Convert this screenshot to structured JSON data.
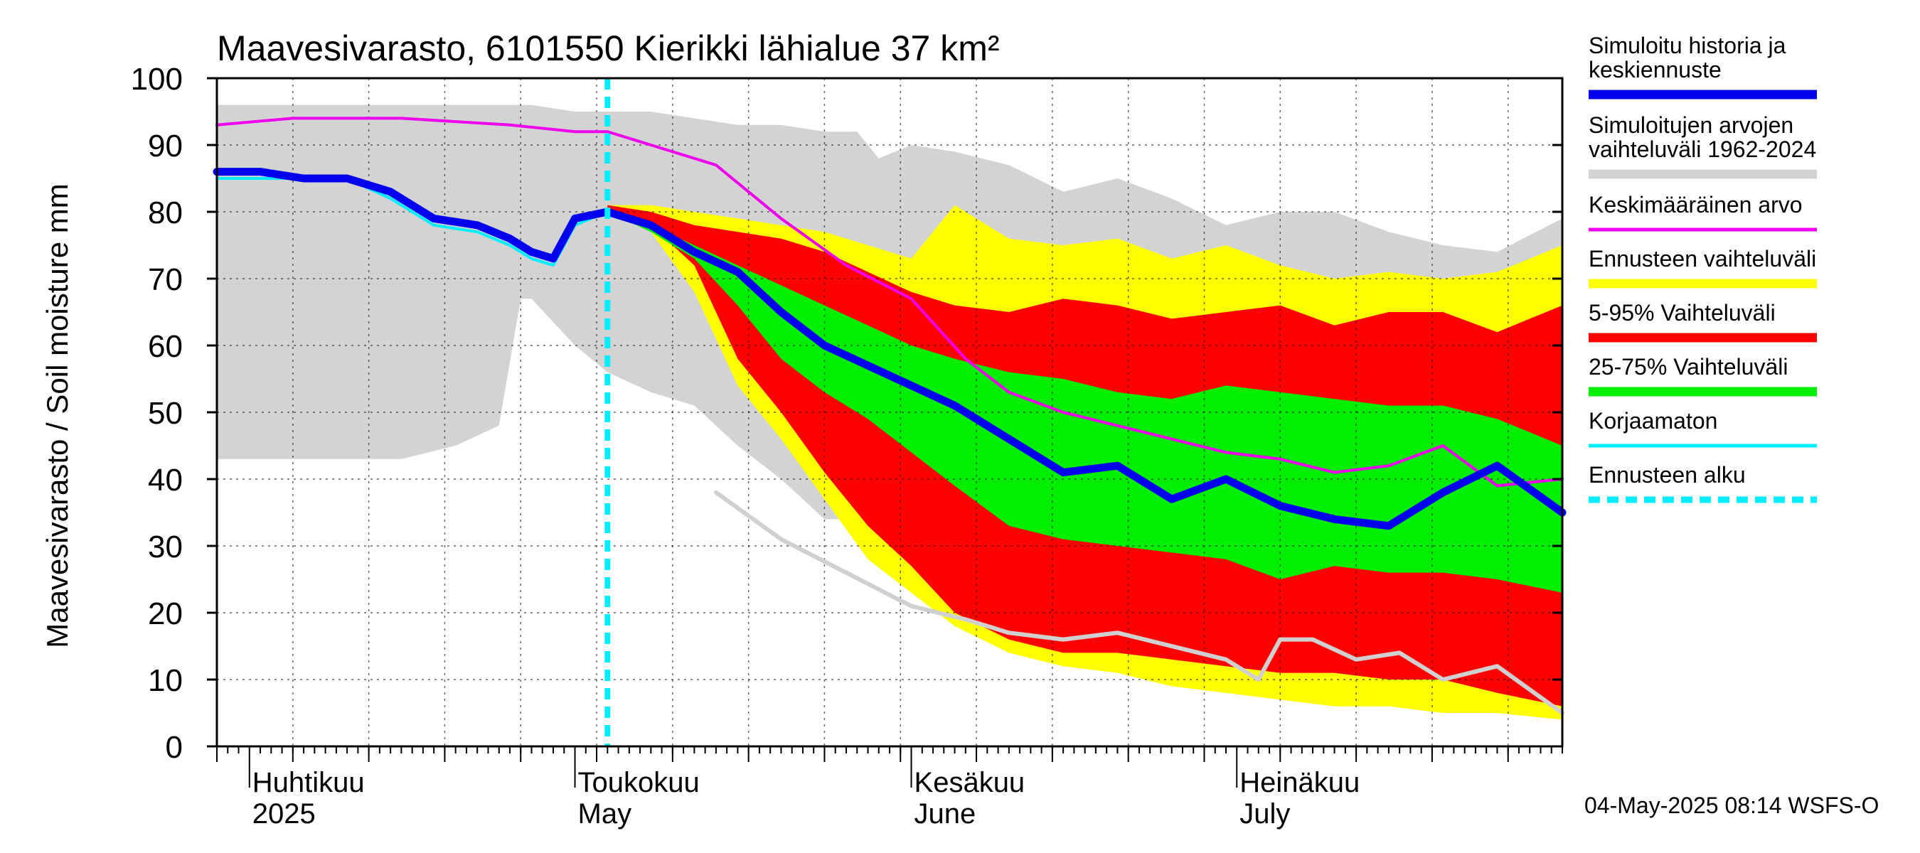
{
  "chart_data": {
    "type": "area",
    "title": "Maavesivarasto, 6101550 Kierikki lähialue 37 km²",
    "ylabel": "Maavesivarasto / Soil moisture   mm",
    "xlabel": "",
    "ylim": [
      0,
      100
    ],
    "xlim": [
      "2025-03-29",
      "2025-07-31"
    ],
    "yticks": [
      0,
      10,
      20,
      30,
      40,
      50,
      60,
      70,
      80,
      90,
      100
    ],
    "grid": true,
    "legend_position": "right",
    "forecast_start": "2025-05-04",
    "x_month_labels": [
      {
        "date": "2025-04-01",
        "line1": "Huhtikuu",
        "line2": "2025"
      },
      {
        "date": "2025-05-01",
        "line1": "Toukokuu",
        "line2": "May"
      },
      {
        "date": "2025-06-01",
        "line1": "Kesäkuu",
        "line2": "June"
      },
      {
        "date": "2025-07-01",
        "line1": "Heinäkuu",
        "line2": "July"
      }
    ],
    "colors": {
      "history_range": "#d3d3d3",
      "forecast_range": "#ffff00",
      "p5_95": "#ff0000",
      "p25_75": "#00ee00",
      "simulated": "#0000ee",
      "mean": "#ee00ee",
      "uncorrected": "#00eeff",
      "forecast_start": "#00eeff",
      "lower_line": "#d0d0d0"
    },
    "bands": {
      "history_range": {
        "x": [
          "2025-03-29",
          "2025-04-10",
          "2025-04-15",
          "2025-04-20",
          "2025-04-24",
          "2025-04-26",
          "2025-04-27",
          "2025-05-01",
          "2025-05-04",
          "2025-05-08",
          "2025-05-12",
          "2025-05-16",
          "2025-05-20",
          "2025-05-24",
          "2025-05-27",
          "2025-05-29",
          "2025-06-01",
          "2025-06-05",
          "2025-06-10",
          "2025-06-15",
          "2025-06-20",
          "2025-06-25",
          "2025-06-30",
          "2025-07-05",
          "2025-07-10",
          "2025-07-15",
          "2025-07-20",
          "2025-07-25",
          "2025-07-31"
        ],
        "upper": [
          96,
          96,
          96,
          96,
          96,
          96,
          96,
          95,
          95,
          95,
          94,
          93,
          93,
          92,
          92,
          88,
          90,
          89,
          87,
          83,
          85,
          82,
          78,
          80,
          80,
          77,
          75,
          74,
          79
        ],
        "lower": [
          43,
          43,
          43,
          45,
          48,
          67,
          67,
          60,
          56,
          53,
          51,
          45,
          40,
          34,
          34,
          34,
          34,
          30,
          25,
          22,
          18,
          15,
          13,
          12,
          10,
          10,
          9,
          8,
          6
        ]
      },
      "forecast_range": {
        "x": [
          "2025-05-04",
          "2025-05-08",
          "2025-05-12",
          "2025-05-16",
          "2025-05-20",
          "2025-05-24",
          "2025-05-28",
          "2025-06-01",
          "2025-06-05",
          "2025-06-10",
          "2025-06-15",
          "2025-06-20",
          "2025-06-25",
          "2025-06-30",
          "2025-07-05",
          "2025-07-10",
          "2025-07-15",
          "2025-07-20",
          "2025-07-25",
          "2025-07-31"
        ],
        "upper": [
          81,
          81,
          80,
          79,
          78,
          77,
          75,
          73,
          81,
          76,
          75,
          76,
          73,
          75,
          72,
          70,
          71,
          70,
          71,
          75
        ],
        "lower": [
          80,
          77,
          68,
          54,
          46,
          37,
          28,
          23,
          18,
          14,
          12,
          11,
          9,
          8,
          7,
          6,
          6,
          5,
          5,
          4
        ]
      },
      "p5_95": {
        "x": [
          "2025-05-04",
          "2025-05-08",
          "2025-05-12",
          "2025-05-16",
          "2025-05-20",
          "2025-05-24",
          "2025-05-28",
          "2025-06-01",
          "2025-06-05",
          "2025-06-10",
          "2025-06-15",
          "2025-06-20",
          "2025-06-25",
          "2025-06-30",
          "2025-07-05",
          "2025-07-10",
          "2025-07-15",
          "2025-07-20",
          "2025-07-25",
          "2025-07-31"
        ],
        "upper": [
          81,
          80,
          78,
          77,
          76,
          74,
          71,
          68,
          66,
          65,
          67,
          66,
          64,
          65,
          66,
          63,
          65,
          65,
          62,
          66
        ],
        "lower": [
          80,
          78,
          72,
          58,
          50,
          41,
          33,
          27,
          20,
          16,
          14,
          14,
          13,
          12,
          11,
          11,
          10,
          10,
          8,
          6
        ]
      },
      "p25_75": {
        "x": [
          "2025-05-04",
          "2025-05-08",
          "2025-05-12",
          "2025-05-16",
          "2025-05-20",
          "2025-05-24",
          "2025-05-28",
          "2025-06-01",
          "2025-06-05",
          "2025-06-10",
          "2025-06-15",
          "2025-06-20",
          "2025-06-25",
          "2025-06-30",
          "2025-07-05",
          "2025-07-10",
          "2025-07-15",
          "2025-07-20",
          "2025-07-25",
          "2025-07-31"
        ],
        "upper": [
          80,
          78,
          75,
          72,
          69,
          66,
          63,
          60,
          58,
          56,
          55,
          53,
          52,
          54,
          53,
          52,
          51,
          51,
          49,
          45
        ],
        "lower": [
          80,
          77,
          73,
          66,
          58,
          53,
          49,
          44,
          39,
          33,
          31,
          30,
          29,
          28,
          25,
          27,
          26,
          26,
          25,
          23
        ]
      }
    },
    "series": [
      {
        "name": "Simuloitu historia ja keskiennuste",
        "color": "#0000ee",
        "x": [
          "2025-03-29",
          "2025-04-02",
          "2025-04-06",
          "2025-04-10",
          "2025-04-14",
          "2025-04-18",
          "2025-04-22",
          "2025-04-25",
          "2025-04-27",
          "2025-04-29",
          "2025-05-01",
          "2025-05-04",
          "2025-05-08",
          "2025-05-12",
          "2025-05-16",
          "2025-05-20",
          "2025-05-24",
          "2025-05-28",
          "2025-06-01",
          "2025-06-05",
          "2025-06-10",
          "2025-06-15",
          "2025-06-20",
          "2025-06-25",
          "2025-06-30",
          "2025-07-05",
          "2025-07-10",
          "2025-07-15",
          "2025-07-20",
          "2025-07-25",
          "2025-07-31"
        ],
        "values": [
          86,
          86,
          85,
          85,
          83,
          79,
          78,
          76,
          74,
          73,
          79,
          80,
          78,
          74,
          71,
          65,
          60,
          57,
          54,
          51,
          46,
          41,
          42,
          37,
          40,
          36,
          34,
          33,
          38,
          42,
          35
        ]
      },
      {
        "name": "Keskimääräinen arvo",
        "color": "#ee00ee",
        "x": [
          "2025-03-29",
          "2025-04-05",
          "2025-04-15",
          "2025-04-25",
          "2025-05-01",
          "2025-05-04",
          "2025-05-08",
          "2025-05-14",
          "2025-05-20",
          "2025-05-26",
          "2025-06-01",
          "2025-06-06",
          "2025-06-10",
          "2025-06-15",
          "2025-06-20",
          "2025-06-25",
          "2025-06-30",
          "2025-07-05",
          "2025-07-10",
          "2025-07-15",
          "2025-07-20",
          "2025-07-25",
          "2025-07-31"
        ],
        "values": [
          93,
          94,
          94,
          93,
          92,
          92,
          90,
          87,
          79,
          72,
          67,
          58,
          53,
          50,
          48,
          46,
          44,
          43,
          41,
          42,
          45,
          39,
          40
        ]
      },
      {
        "name": "Korjaamaton",
        "color": "#00eeff",
        "x": [
          "2025-03-29",
          "2025-04-02",
          "2025-04-06",
          "2025-04-10",
          "2025-04-14",
          "2025-04-18",
          "2025-04-22",
          "2025-04-25",
          "2025-04-27",
          "2025-04-29",
          "2025-05-01",
          "2025-05-04",
          "2025-05-06"
        ],
        "values": [
          85,
          85,
          85,
          85,
          82,
          78,
          77,
          75,
          73,
          72,
          78,
          80,
          79
        ]
      }
    ],
    "lower_line": {
      "x": [
        "2025-05-14",
        "2025-05-20",
        "2025-05-26",
        "2025-06-01",
        "2025-06-06",
        "2025-06-10",
        "2025-06-15",
        "2025-06-20",
        "2025-06-25",
        "2025-06-30",
        "2025-07-03",
        "2025-07-05",
        "2025-07-08",
        "2025-07-12",
        "2025-07-16",
        "2025-07-20",
        "2025-07-25",
        "2025-07-31"
      ],
      "values": [
        38,
        31,
        26,
        21,
        19,
        17,
        16,
        17,
        15,
        13,
        10,
        16,
        16,
        13,
        14,
        10,
        12,
        5
      ]
    },
    "legend": [
      {
        "line1": "Simuloitu historia ja",
        "line2": "keskiennuste",
        "color": "#0000ee",
        "style": "thick"
      },
      {
        "line1": "Simuloitujen arvojen",
        "line2": "vaihteluväli 1962-2024",
        "color": "#d3d3d3",
        "style": "thick"
      },
      {
        "line1": "Keskimääräinen arvo",
        "line2": "",
        "color": "#ee00ee",
        "style": "thin"
      },
      {
        "line1": "Ennusteen vaihteluväli",
        "line2": "",
        "color": "#ffff00",
        "style": "thick"
      },
      {
        "line1": "5-95% Vaihteluväli",
        "line2": "",
        "color": "#ff0000",
        "style": "thick"
      },
      {
        "line1": "25-75% Vaihteluväli",
        "line2": "",
        "color": "#00ee00",
        "style": "thick"
      },
      {
        "line1": "Korjaamaton",
        "line2": "",
        "color": "#00eeff",
        "style": "thin"
      },
      {
        "line1": "Ennusteen alku",
        "line2": "",
        "color": "#00eeff",
        "style": "dashed"
      }
    ]
  },
  "footer": {
    "timestamp": "04-May-2025 08:14 WSFS-O"
  }
}
